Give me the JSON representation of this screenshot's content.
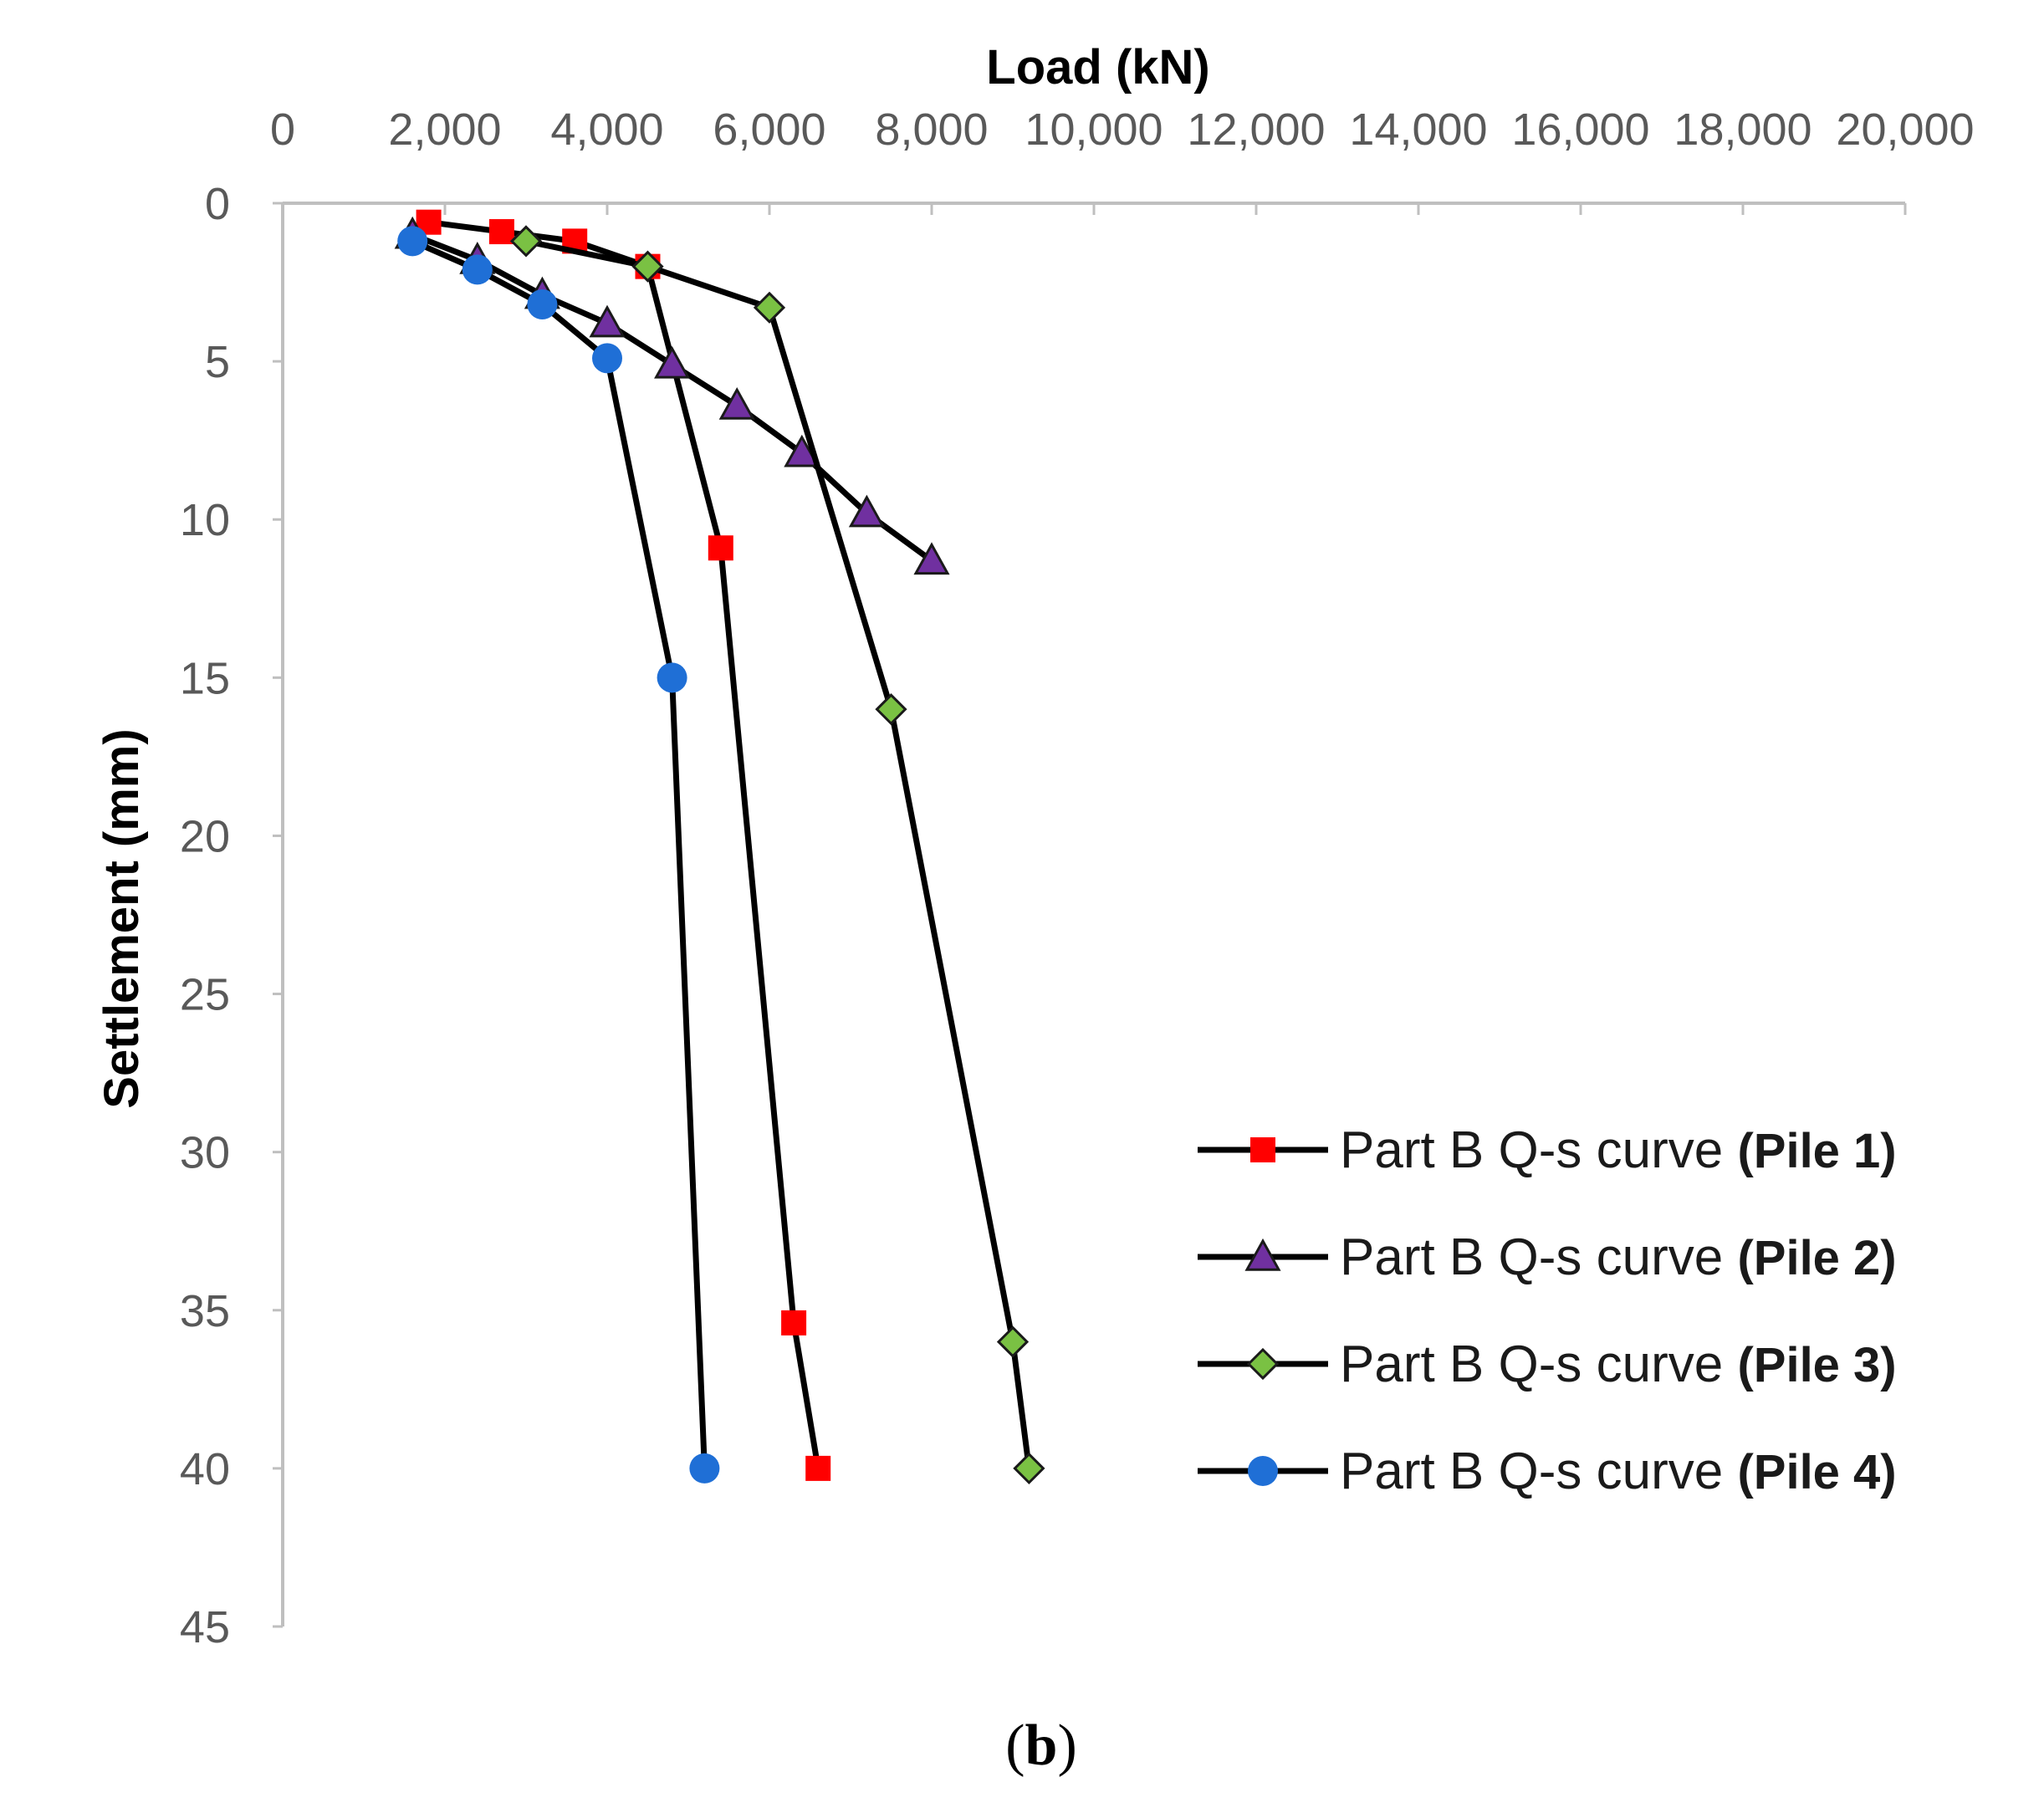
{
  "chart_data": {
    "type": "line",
    "title": "",
    "xlabel": "Load (kN)",
    "ylabel": "Settlement (mm)",
    "xlim": [
      0,
      20000
    ],
    "ylim": [
      0,
      45
    ],
    "x_axis_position": "top",
    "y_axis_inverted": true,
    "x_tick_labels": [
      "0",
      "2,000",
      "4,000",
      "6,000",
      "8,000",
      "10,000",
      "12,000",
      "14,000",
      "16,000",
      "18,000",
      "20,000"
    ],
    "x_tick_values": [
      0,
      2000,
      4000,
      6000,
      8000,
      10000,
      12000,
      14000,
      16000,
      18000,
      20000
    ],
    "y_tick_labels": [
      "0",
      "5",
      "10",
      "15",
      "20",
      "25",
      "30",
      "35",
      "40",
      "45"
    ],
    "y_tick_values": [
      0,
      5,
      10,
      15,
      20,
      25,
      30,
      35,
      40,
      45
    ],
    "grid": false,
    "legend_position": "bottom-right",
    "caption_open": "(",
    "caption_label": "b",
    "caption_close": ")",
    "series": [
      {
        "name": "Part B Q-s curve",
        "legend_suffix": "(Pile 1)",
        "marker": "square",
        "marker_color": "#ff0000",
        "line_color": "#000000",
        "points": [
          {
            "x": 1800,
            "y": 0.6
          },
          {
            "x": 2700,
            "y": 0.9
          },
          {
            "x": 3600,
            "y": 1.2
          },
          {
            "x": 4500,
            "y": 2.0
          },
          {
            "x": 5400,
            "y": 10.9
          },
          {
            "x": 6300,
            "y": 35.4
          },
          {
            "x": 6600,
            "y": 40.0
          }
        ]
      },
      {
        "name": "Part B Q-s curve",
        "legend_suffix": "(Pile 2)",
        "marker": "triangle",
        "marker_color": "#7030a0",
        "line_color": "#000000",
        "points": [
          {
            "x": 1600,
            "y": 1.0
          },
          {
            "x": 2400,
            "y": 1.8
          },
          {
            "x": 3200,
            "y": 2.9
          },
          {
            "x": 4000,
            "y": 3.8
          },
          {
            "x": 4800,
            "y": 5.1
          },
          {
            "x": 5600,
            "y": 6.4
          },
          {
            "x": 6400,
            "y": 7.9
          },
          {
            "x": 7200,
            "y": 9.8
          },
          {
            "x": 8000,
            "y": 11.3
          }
        ]
      },
      {
        "name": "Part B Q-s curve",
        "legend_suffix": "(Pile 3)",
        "marker": "diamond",
        "marker_color": "#7ac143",
        "line_color": "#000000",
        "points": [
          {
            "x": 3000,
            "y": 1.2
          },
          {
            "x": 4500,
            "y": 2.0
          },
          {
            "x": 6000,
            "y": 3.3
          },
          {
            "x": 7500,
            "y": 16.0
          },
          {
            "x": 9000,
            "y": 36.0
          },
          {
            "x": 9200,
            "y": 40.0
          }
        ]
      },
      {
        "name": "Part B Q-s curve",
        "legend_suffix": "(Pile 4)",
        "marker": "circle",
        "marker_color": "#1f6fd6",
        "line_color": "#000000",
        "points": [
          {
            "x": 1600,
            "y": 1.2
          },
          {
            "x": 2400,
            "y": 2.1
          },
          {
            "x": 3200,
            "y": 3.2
          },
          {
            "x": 4000,
            "y": 4.9
          },
          {
            "x": 4800,
            "y": 15.0
          },
          {
            "x": 5200,
            "y": 40.0
          }
        ]
      }
    ]
  }
}
